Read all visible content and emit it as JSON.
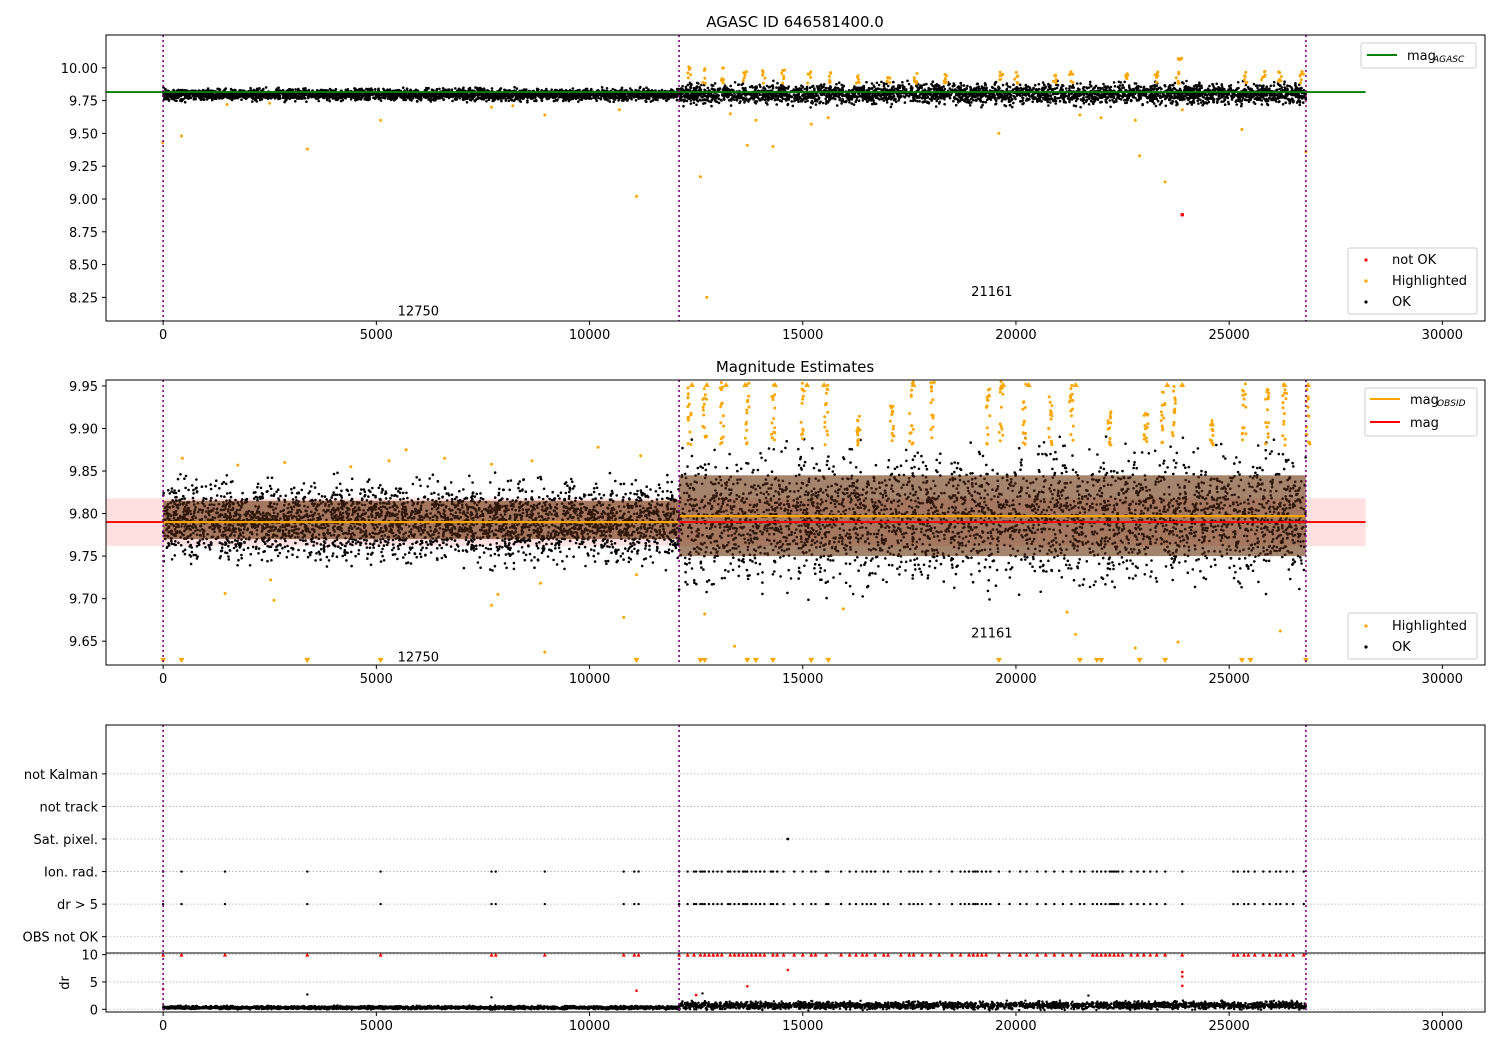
{
  "colors": {
    "ok": "#000000",
    "highlighted": "#ffa500",
    "not_ok": "#ff0000",
    "mag_agasc": "#008000",
    "mag": "#ff0000",
    "mag_obsid": "#ffa500",
    "obsid_boundary": "#800080",
    "grid": "#b0b0b0"
  },
  "chart_data": [
    {
      "type": "scatter",
      "title": "AGASC ID 646581400.0",
      "xlim": [
        -1340,
        31000
      ],
      "ylim": [
        8.07,
        10.25
      ],
      "xticks": [
        0,
        5000,
        10000,
        15000,
        20000,
        25000,
        30000
      ],
      "yticks": [
        8.25,
        8.5,
        8.75,
        9.0,
        9.25,
        9.5,
        9.75,
        10.0
      ],
      "ytick_labels": [
        "8.25",
        "8.50",
        "8.75",
        "9.00",
        "9.25",
        "9.50",
        "9.75",
        "10.00"
      ],
      "obsid_boundaries": [
        0,
        12100,
        26800
      ],
      "obsid_labels": [
        {
          "text": "12750",
          "x": 5500,
          "y": 8.15
        },
        {
          "text": "21161",
          "x": 18950,
          "y": 8.3
        }
      ],
      "mag_agasc": 9.815,
      "mag_agasc_range": [
        -1340,
        28200
      ],
      "legend_top": {
        "position": "top-right",
        "entries": [
          {
            "label": "mag",
            "sub": "AGASC"
          }
        ]
      },
      "legend_bottom": {
        "position": "bottom-right",
        "entries": [
          "not OK",
          "Highlighted",
          "OK"
        ]
      },
      "ok_band": [
        {
          "x0": 0,
          "x1": 12100,
          "ymin": 9.75,
          "ymax": 9.84
        },
        {
          "x0": 12100,
          "x1": 26800,
          "ymin": 9.72,
          "ymax": 9.88
        }
      ],
      "highlighted_points": [
        [
          -10,
          9.43
        ],
        [
          430,
          9.48
        ],
        [
          3380,
          9.38
        ],
        [
          5100,
          9.6
        ],
        [
          7700,
          9.7
        ],
        [
          8950,
          9.64
        ],
        [
          10700,
          9.68
        ],
        [
          11100,
          9.02
        ],
        [
          12600,
          9.17
        ],
        [
          12750,
          8.25
        ],
        [
          13300,
          9.65
        ],
        [
          13700,
          9.41
        ],
        [
          13900,
          9.6
        ],
        [
          14300,
          9.4
        ],
        [
          15200,
          9.57
        ],
        [
          15600,
          9.62
        ],
        [
          19600,
          9.5
        ],
        [
          21500,
          9.64
        ],
        [
          22000,
          9.62
        ],
        [
          22800,
          9.6
        ],
        [
          22900,
          9.33
        ],
        [
          23500,
          9.13
        ],
        [
          23900,
          9.68
        ],
        [
          25300,
          9.53
        ],
        [
          26800,
          9.36
        ],
        [
          2500,
          9.73
        ],
        [
          1500,
          9.72
        ],
        [
          8200,
          9.71
        ]
      ],
      "highlight_clusters": [
        [
          12350,
          9.9,
          10.02
        ],
        [
          12700,
          9.88,
          10.01
        ],
        [
          13100,
          9.88,
          10.0
        ],
        [
          13650,
          9.88,
          9.97
        ],
        [
          14100,
          9.87,
          9.98
        ],
        [
          14550,
          9.88,
          10.01
        ],
        [
          15150,
          9.88,
          9.98
        ],
        [
          15650,
          9.88,
          9.97
        ],
        [
          16300,
          9.87,
          9.94
        ],
        [
          17000,
          9.88,
          9.93
        ],
        [
          17650,
          9.88,
          9.96
        ],
        [
          18350,
          9.88,
          9.98
        ],
        [
          19650,
          9.88,
          9.97
        ],
        [
          20000,
          9.88,
          9.98
        ],
        [
          20900,
          9.88,
          9.98
        ],
        [
          21300,
          9.88,
          9.98
        ],
        [
          22600,
          9.88,
          9.96
        ],
        [
          23300,
          9.88,
          9.97
        ],
        [
          23800,
          9.88,
          9.97
        ],
        [
          25400,
          9.88,
          9.97
        ],
        [
          25800,
          9.88,
          9.98
        ],
        [
          26200,
          9.88,
          9.98
        ],
        [
          26700,
          9.88,
          9.99
        ],
        [
          23850,
          10.06,
          10.08
        ]
      ],
      "not_ok_points": [
        [
          23900,
          8.88
        ]
      ]
    },
    {
      "type": "scatter",
      "title": "Magnitude Estimates",
      "xlim": [
        -1340,
        31000
      ],
      "ylim": [
        9.622,
        9.957
      ],
      "xticks": [
        0,
        5000,
        10000,
        15000,
        20000,
        25000,
        30000
      ],
      "yticks": [
        9.65,
        9.7,
        9.75,
        9.8,
        9.85,
        9.9,
        9.95
      ],
      "ytick_labels": [
        "9.65",
        "9.70",
        "9.75",
        "9.80",
        "9.85",
        "9.90",
        "9.95"
      ],
      "obsid_boundaries": [
        0,
        12100,
        26800
      ],
      "obsid_labels": [
        {
          "text": "12750",
          "x": 5500,
          "y": 9.632
        },
        {
          "text": "21161",
          "x": 18950,
          "y": 9.66
        }
      ],
      "mag": 9.79,
      "mag_band": [
        9.762,
        9.818
      ],
      "mag_range": [
        -1340,
        28200
      ],
      "mag_obsid": [
        {
          "x0": 0,
          "x1": 12100,
          "value": 9.79,
          "band": [
            9.77,
            9.815
          ]
        },
        {
          "x0": 12100,
          "x1": 26800,
          "value": 9.797,
          "band": [
            9.75,
            9.845
          ]
        }
      ],
      "legend_top": {
        "position": "top-right",
        "entries": [
          {
            "label": "mag",
            "sub": "OBSID"
          },
          {
            "label": "mag",
            "sub": ""
          }
        ]
      },
      "legend_bottom": {
        "position": "bottom-right",
        "entries": [
          "Highlighted",
          "OK"
        ]
      },
      "ok_band": [
        {
          "x0": 0,
          "x1": 12100,
          "ymin": 9.745,
          "ymax": 9.835
        },
        {
          "x0": 12100,
          "x1": 26800,
          "ymin": 9.72,
          "ymax": 9.87
        }
      ],
      "highlighted_points": [
        [
          1450,
          9.706
        ],
        [
          2520,
          9.722
        ],
        [
          2600,
          9.698
        ],
        [
          7700,
          9.692
        ],
        [
          7850,
          9.705
        ],
        [
          8850,
          9.718
        ],
        [
          8950,
          9.637
        ],
        [
          10800,
          9.678
        ],
        [
          11100,
          9.728
        ],
        [
          12700,
          9.682
        ],
        [
          13400,
          9.644
        ],
        [
          15950,
          9.688
        ],
        [
          21200,
          9.684
        ],
        [
          21400,
          9.658
        ],
        [
          22800,
          9.642
        ],
        [
          23800,
          9.649
        ],
        [
          26200,
          9.662
        ],
        [
          450,
          9.865
        ],
        [
          1750,
          9.857
        ],
        [
          2850,
          9.86
        ],
        [
          4400,
          9.855
        ],
        [
          5300,
          9.862
        ],
        [
          5700,
          9.875
        ],
        [
          6600,
          9.865
        ],
        [
          7700,
          9.858
        ],
        [
          8650,
          9.862
        ],
        [
          10200,
          9.878
        ],
        [
          11200,
          9.868
        ]
      ],
      "highlight_clusters": [
        [
          12350,
          9.88,
          9.955
        ],
        [
          12700,
          9.88,
          9.955
        ],
        [
          13100,
          9.88,
          9.955
        ],
        [
          13700,
          9.88,
          9.955
        ],
        [
          14300,
          9.88,
          9.955
        ],
        [
          15000,
          9.88,
          9.955
        ],
        [
          15550,
          9.88,
          9.955
        ],
        [
          16300,
          9.88,
          9.92
        ],
        [
          17100,
          9.88,
          9.93
        ],
        [
          17550,
          9.88,
          9.955
        ],
        [
          18050,
          9.88,
          9.955
        ],
        [
          19350,
          9.88,
          9.955
        ],
        [
          19650,
          9.88,
          9.955
        ],
        [
          20200,
          9.88,
          9.955
        ],
        [
          20800,
          9.88,
          9.94
        ],
        [
          21300,
          9.88,
          9.955
        ],
        [
          22200,
          9.88,
          9.92
        ],
        [
          23050,
          9.88,
          9.92
        ],
        [
          23450,
          9.88,
          9.955
        ],
        [
          23700,
          9.88,
          9.955
        ],
        [
          24600,
          9.88,
          9.91
        ],
        [
          25350,
          9.88,
          9.955
        ],
        [
          25900,
          9.88,
          9.955
        ],
        [
          26300,
          9.88,
          9.955
        ],
        [
          26850,
          9.88,
          9.955
        ]
      ],
      "clipped_low": [
        0,
        430,
        3380,
        5100,
        11100,
        12600,
        12700,
        13700,
        13900,
        14300,
        15200,
        15600,
        19600,
        21500,
        21900,
        22000,
        22900,
        23500,
        25300,
        25500,
        26800
      ],
      "clipped_high": [
        12400,
        12750,
        13200,
        13650,
        14350,
        15100,
        15500,
        17600,
        19700,
        20300,
        21400,
        23550,
        23900,
        26300,
        26850
      ]
    },
    {
      "type": "scatter",
      "title": "",
      "xlim": [
        -1340,
        31000
      ],
      "ylim": [
        -0.5,
        6.5
      ],
      "categories": [
        "OBS not OK",
        "dr > 5",
        "Ion. rad.",
        "Sat. pixel.",
        "not track",
        "not Kalman"
      ],
      "obsid_boundaries": [
        0,
        12100,
        26800
      ],
      "flag_dr5_ion": [
        0,
        430,
        1450,
        3380,
        5100,
        7700,
        7800,
        8950,
        10800,
        11050,
        11150,
        12100,
        12300,
        12450,
        12500,
        12600,
        12650,
        12700,
        12800,
        12900,
        13000,
        13100,
        13250,
        13300,
        13400,
        13500,
        13600,
        13650,
        13700,
        13800,
        13900,
        14000,
        14100,
        14250,
        14300,
        14400,
        14550,
        14800,
        15000,
        15200,
        15300,
        15550,
        15600,
        15900,
        16100,
        16250,
        16400,
        16500,
        16600,
        16700,
        16900,
        17000,
        17300,
        17500,
        17600,
        17700,
        17800,
        18000,
        18200,
        18500,
        18700,
        18800,
        18900,
        19000,
        19050,
        19100,
        19200,
        19300,
        19400,
        19600,
        19850,
        20100,
        20250,
        20500,
        20700,
        20900,
        21100,
        21300,
        21500,
        21600,
        21800,
        21900,
        22000,
        22100,
        22200,
        22250,
        22300,
        22350,
        22400,
        22500,
        22700,
        22850,
        23000,
        23150,
        23300,
        23500,
        23900,
        25100,
        25200,
        25350,
        25450,
        25600,
        25800,
        25950,
        26100,
        26200,
        26350,
        26500,
        26750
      ],
      "flag_sat_pixel": [
        14650
      ]
    },
    {
      "type": "scatter",
      "title": "",
      "ylabel": "dr",
      "xlim": [
        -1340,
        31000
      ],
      "ylim": [
        -0.5,
        10.3
      ],
      "xticks": [
        0,
        5000,
        10000,
        15000,
        20000,
        25000,
        30000
      ],
      "yticks": [
        0,
        5,
        10
      ],
      "obsid_boundaries": [
        0,
        12100,
        26800
      ],
      "dr_ok_band": [
        {
          "x0": 0,
          "x1": 12100,
          "ymin": 0.0,
          "ymax": 0.6
        },
        {
          "x0": 12100,
          "x1": 26800,
          "ymin": 0.0,
          "ymax": 1.4
        }
      ],
      "dr_red_top": [
        0,
        430,
        1450,
        3380,
        5100,
        7700,
        7800,
        8950,
        10800,
        11050,
        11150,
        12100,
        12300,
        12450,
        12600,
        12700,
        12800,
        12900,
        13000,
        13100,
        13300,
        13400,
        13500,
        13600,
        13700,
        13800,
        13900,
        14000,
        14100,
        14300,
        14400,
        14550,
        14800,
        15000,
        15200,
        15300,
        15550,
        15900,
        16100,
        16250,
        16400,
        16500,
        16700,
        16900,
        17000,
        17300,
        17500,
        17600,
        17800,
        18000,
        18200,
        18500,
        18700,
        18900,
        19000,
        19100,
        19200,
        19300,
        19600,
        19850,
        20100,
        20250,
        20500,
        20700,
        20900,
        21100,
        21300,
        21500,
        21800,
        21900,
        22000,
        22100,
        22200,
        22300,
        22400,
        22500,
        22700,
        22850,
        23000,
        23150,
        23300,
        23500,
        23900,
        25100,
        25200,
        25350,
        25450,
        25600,
        25800,
        25950,
        26100,
        26200,
        26350,
        26500,
        26750
      ],
      "dr_red_mid": [
        [
          0,
          3.7
        ],
        [
          11100,
          3.4
        ],
        [
          12500,
          2.6
        ],
        [
          13700,
          4.2
        ],
        [
          14650,
          7.2
        ],
        [
          23900,
          6.8
        ],
        [
          23900,
          6.0
        ],
        [
          23900,
          4.3
        ]
      ],
      "dr_black_mid": [
        [
          3380,
          2.7
        ],
        [
          7700,
          2.2
        ],
        [
          12650,
          2.9
        ],
        [
          21700,
          2.5
        ]
      ]
    }
  ]
}
